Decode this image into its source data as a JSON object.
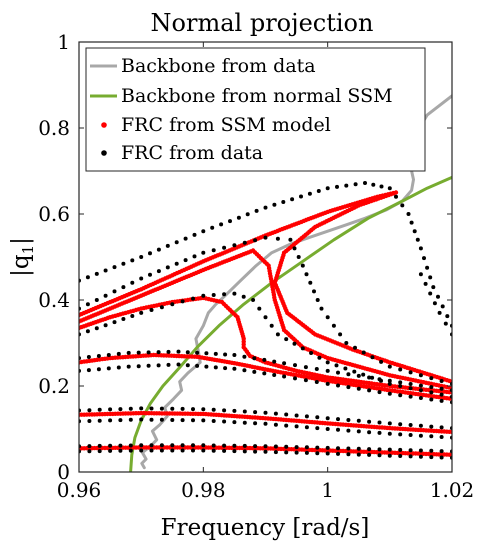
{
  "chart_data": {
    "type": "line",
    "title": "Normal projection",
    "xlabel": "Frequency [rad/s]",
    "ylabel_base": "|q",
    "ylabel_sub": "1",
    "ylabel_tail": "|",
    "xlim": [
      0.96,
      1.02
    ],
    "ylim": [
      0,
      1
    ],
    "xticks": [
      0.96,
      0.98,
      1,
      1.02
    ],
    "xtick_labels": [
      "0.96",
      "0.98",
      "1",
      "1.02"
    ],
    "yticks": [
      0,
      0.2,
      0.4,
      0.6,
      0.8,
      1
    ],
    "ytick_labels": [
      "0",
      "0.2",
      "0.4",
      "0.6",
      "0.8",
      "1"
    ],
    "grid": false,
    "legend_position": "top-right",
    "legend": [
      {
        "label": "Backbone from data",
        "style": "line",
        "color": "#a8a8a8"
      },
      {
        "label": "Backbone from normal SSM",
        "style": "line",
        "color": "#77ac30"
      },
      {
        "label": "FRC from SSM model",
        "style": "dot",
        "color": "#ff0000"
      },
      {
        "label": "FRC from data",
        "style": "dot",
        "color": "#000000"
      }
    ],
    "series": [
      {
        "name": "Backbone from data",
        "kind": "line",
        "color": "#a8a8a8",
        "x": [
          0.9705,
          0.9701,
          0.9708,
          0.9702,
          0.9715,
          0.9725,
          0.9718,
          0.973,
          0.9742,
          0.9738,
          0.9752,
          0.9765,
          0.9762,
          0.9775,
          0.9795,
          0.9792,
          0.9788,
          0.98,
          0.9808,
          0.982,
          0.9835,
          0.986,
          0.9885,
          0.991,
          0.994,
          0.997,
          1.0,
          1.003,
          1.006,
          1.0095,
          1.012,
          1.0135,
          1.0138,
          1.0132,
          1.0135,
          1.016,
          1.02
        ],
        "y": [
          0.01,
          0.02,
          0.03,
          0.045,
          0.06,
          0.075,
          0.095,
          0.11,
          0.13,
          0.15,
          0.17,
          0.19,
          0.21,
          0.23,
          0.255,
          0.28,
          0.31,
          0.34,
          0.37,
          0.39,
          0.41,
          0.445,
          0.48,
          0.51,
          0.53,
          0.545,
          0.56,
          0.575,
          0.59,
          0.61,
          0.63,
          0.655,
          0.68,
          0.72,
          0.77,
          0.83,
          0.875
        ]
      },
      {
        "name": "Backbone from normal SSM",
        "kind": "line",
        "color": "#77ac30",
        "x": [
          0.9683,
          0.9685,
          0.969,
          0.97,
          0.9715,
          0.9735,
          0.976,
          0.979,
          0.9825,
          0.9865,
          0.991,
          0.996,
          1.001,
          1.0065,
          1.012,
          1.016,
          1.02
        ],
        "y": [
          0.0,
          0.04,
          0.08,
          0.12,
          0.16,
          0.2,
          0.24,
          0.29,
          0.34,
          0.39,
          0.44,
          0.49,
          0.54,
          0.59,
          0.63,
          0.66,
          0.685
        ]
      },
      {
        "name": "FRC from SSM model",
        "kind": "dots",
        "color": "#ff0000",
        "curves": [
          {
            "x": [
              0.96,
              0.97,
              0.98,
              0.99,
              1.0,
              1.01,
              1.02
            ],
            "y": [
              0.055,
              0.057,
              0.057,
              0.055,
              0.05,
              0.045,
              0.04
            ]
          },
          {
            "x": [
              0.96,
              0.97,
              0.98,
              0.99,
              1.0,
              1.01,
              1.02
            ],
            "y": [
              0.133,
              0.137,
              0.135,
              0.125,
              0.113,
              0.102,
              0.093
            ]
          },
          {
            "x": [
              0.96,
              0.965,
              0.972,
              0.979,
              0.985,
              0.992,
              1.0,
              1.01,
              1.02
            ],
            "y": [
              0.255,
              0.265,
              0.272,
              0.268,
              0.253,
              0.233,
              0.212,
              0.19,
              0.17
            ]
          },
          {
            "x": [
              0.96,
              0.965,
              0.97,
              0.975,
              0.98,
              0.983,
              0.9855,
              0.9865,
              0.9865,
              0.9875,
              0.99,
              0.995,
              1.0,
              1.01,
              1.02
            ],
            "y": [
              0.335,
              0.36,
              0.38,
              0.395,
              0.405,
              0.395,
              0.36,
              0.31,
              0.29,
              0.27,
              0.255,
              0.235,
              0.22,
              0.2,
              0.185
            ]
          },
          {
            "x": [
              0.96,
              0.97,
              0.98,
              0.988,
              0.9905,
              0.9915,
              0.993,
              0.996,
              1.0,
              1.01,
              1.02
            ],
            "y": [
              0.35,
              0.41,
              0.47,
              0.515,
              0.48,
              0.4,
              0.33,
              0.29,
              0.265,
              0.225,
              0.195
            ]
          },
          {
            "x": [
              0.96,
              0.97,
              0.98,
              0.99,
              1.0,
              1.008,
              1.011,
              1.005,
              0.998,
              0.993,
              0.9915,
              0.9935,
              0.998,
              1.004,
              1.01,
              1.02
            ],
            "y": [
              0.365,
              0.425,
              0.49,
              0.55,
              0.605,
              0.64,
              0.65,
              0.62,
              0.57,
              0.51,
              0.44,
              0.37,
              0.32,
              0.285,
              0.255,
              0.21
            ]
          }
        ]
      },
      {
        "name": "FRC from data",
        "kind": "dots",
        "color": "#000000",
        "curves": [
          {
            "x": [
              0.96,
              0.97,
              0.98,
              0.99,
              1.0,
              1.01,
              1.02
            ],
            "y": [
              0.048,
              0.05,
              0.05,
              0.047,
              0.043,
              0.038,
              0.033
            ]
          },
          {
            "x": [
              0.96,
              0.97,
              0.98,
              0.99,
              1.0,
              1.01,
              1.02
            ],
            "y": [
              0.06,
              0.062,
              0.062,
              0.06,
              0.056,
              0.052,
              0.048
            ]
          },
          {
            "x": [
              0.96,
              0.97,
              0.98,
              0.99,
              1.0,
              1.01,
              1.02
            ],
            "y": [
              0.118,
              0.122,
              0.12,
              0.112,
              0.1,
              0.089,
              0.08
            ]
          },
          {
            "x": [
              0.96,
              0.97,
              0.98,
              0.99,
              1.0,
              1.01,
              1.02
            ],
            "y": [
              0.143,
              0.148,
              0.146,
              0.138,
              0.125,
              0.113,
              0.102
            ]
          },
          {
            "x": [
              0.96,
              0.968,
              0.976,
              0.985,
              0.993,
              1.0,
              1.01,
              1.02
            ],
            "y": [
              0.235,
              0.245,
              0.25,
              0.24,
              0.222,
              0.205,
              0.182,
              0.162
            ]
          },
          {
            "x": [
              0.96,
              0.968,
              0.976,
              0.985,
              0.993,
              1.0,
              1.01,
              1.02
            ],
            "y": [
              0.265,
              0.277,
              0.28,
              0.272,
              0.253,
              0.235,
              0.212,
              0.19
            ]
          },
          {
            "x": [
              0.96,
              0.97,
              0.98,
              0.985,
              0.988,
              0.992,
              1.0,
              1.01,
              1.02
            ],
            "y": [
              0.32,
              0.37,
              0.41,
              0.415,
              0.4,
              0.32,
              0.255,
              0.205,
              0.175
            ]
          },
          {
            "x": [
              0.96,
              0.97,
              0.98,
              0.99,
              0.994,
              0.996,
              0.999,
              1.003,
              1.01,
              1.02
            ],
            "y": [
              0.38,
              0.45,
              0.51,
              0.545,
              0.54,
              0.48,
              0.38,
              0.3,
              0.245,
              0.205
            ]
          },
          {
            "x": [
              0.96,
              0.97,
              0.98,
              0.99,
              1.0,
              1.006,
              1.01,
              1.013,
              1.015,
              1.017,
              1.02
            ],
            "y": [
              0.445,
              0.5,
              0.56,
              0.615,
              0.66,
              0.672,
              0.66,
              0.6,
              0.52,
              0.43,
              0.34
            ]
          },
          {
            "x": [
              1.015,
              1.018,
              1.02
            ],
            "y": [
              0.46,
              0.37,
              0.32
            ]
          }
        ]
      }
    ]
  }
}
